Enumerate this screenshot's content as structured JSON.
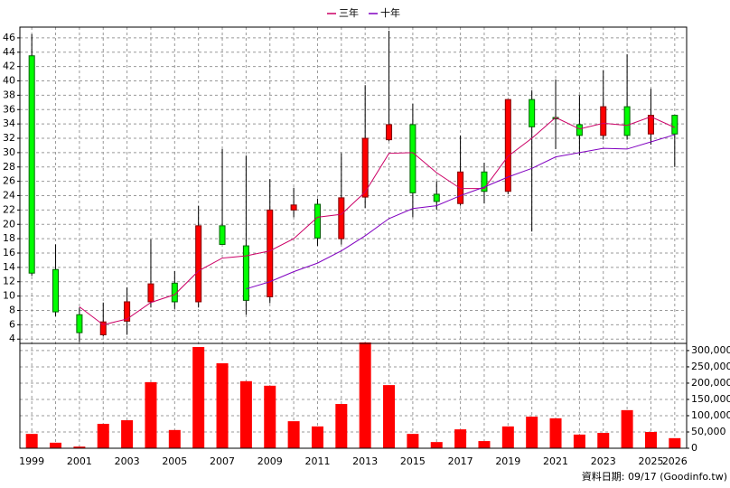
{
  "chart_data": [
    {
      "type": "candlestick",
      "open": [
        43.5,
        13.7,
        7.4,
        4.6,
        6.5,
        9.2,
        11.8,
        9.2,
        19.8,
        17.0,
        9.9,
        22.0,
        22.8,
        18.0,
        23.8,
        31.8,
        33.9,
        24.2,
        22.9,
        27.3,
        24.6,
        37.4,
        34.9,
        33.9,
        32.4,
        36.4,
        32.6,
        35.2
      ],
      "close": [
        13.2,
        7.8,
        4.9,
        6.4,
        9.2,
        11.7,
        9.2,
        19.8,
        17.2,
        9.4,
        22.0,
        22.7,
        18.1,
        23.7,
        32.0,
        33.9,
        24.4,
        23.2,
        27.3,
        24.6,
        37.4,
        33.6,
        34.7,
        32.4,
        36.4,
        32.4,
        35.2,
        32.6
      ],
      "high": [
        46.5,
        17.2,
        8.4,
        9.1,
        11.2,
        17.9,
        13.5,
        22.6,
        30.5,
        29.6,
        26.3,
        25.1,
        23.6,
        29.9,
        39.4,
        47.0,
        36.8,
        26.0,
        32.4,
        28.6,
        37.4,
        38.7,
        40.2,
        38.0,
        41.5,
        43.7,
        38.9,
        35.2
      ],
      "low": [
        12.8,
        7.2,
        3.6,
        4.4,
        4.6,
        8.4,
        8.2,
        8.4,
        17.2,
        7.4,
        9.0,
        21.0,
        17.0,
        17.2,
        22.3,
        31.6,
        21.0,
        22.0,
        22.6,
        22.9,
        24.2,
        19.0,
        30.5,
        29.6,
        31.8,
        31.8,
        31.1,
        28.0
      ],
      "up_color": "#ff0000",
      "down_color": "#00ff00",
      "series": [
        {
          "name": "三年",
          "color": "#cc0066",
          "values": [
            null,
            null,
            8.5,
            6.0,
            6.8,
            9.1,
            10.2,
            13.5,
            15.3,
            15.6,
            16.3,
            18.0,
            21.0,
            21.4,
            24.5,
            29.9,
            30.0,
            27.2,
            25.0,
            25.0,
            29.5,
            32.0,
            34.9,
            33.3,
            34.1,
            33.8,
            35.0,
            33.5
          ]
        },
        {
          "name": "十年",
          "color": "#8000c0",
          "values": [
            null,
            null,
            null,
            null,
            null,
            null,
            null,
            null,
            null,
            11.0,
            12.0,
            13.4,
            14.6,
            16.3,
            18.4,
            20.8,
            22.2,
            22.6,
            24.0,
            25.2,
            26.6,
            27.8,
            29.4,
            30.0,
            30.6,
            30.5,
            31.5,
            32.5
          ]
        }
      ],
      "ylim": [
        3.4,
        47.5
      ],
      "yticks": [
        4,
        6,
        8,
        10,
        12,
        14,
        16,
        18,
        20,
        22,
        24,
        26,
        28,
        30,
        32,
        34,
        36,
        38,
        40,
        42,
        44,
        46
      ],
      "grid": true
    },
    {
      "type": "bar",
      "categories": [
        "1999",
        null,
        "2001",
        null,
        "2003",
        null,
        "2005",
        null,
        "2007",
        null,
        "2009",
        null,
        "2011",
        null,
        "2013",
        null,
        "2015",
        null,
        "2017",
        null,
        "2019",
        null,
        "2021",
        null,
        "2023",
        null,
        "2025",
        "2026"
      ],
      "values": [
        44000,
        17000,
        5000,
        75000,
        86000,
        203000,
        56000,
        311000,
        261000,
        206000,
        192000,
        83000,
        67000,
        136000,
        325000,
        194000,
        44000,
        19000,
        58000,
        22000,
        67000,
        97000,
        92000,
        42000,
        47000,
        117000,
        50000,
        31000
      ],
      "color": "#ff0000",
      "ylim": [
        0,
        322000
      ],
      "yticks": [
        0,
        {
          "value": 50000,
          "label": "50,000"
        },
        {
          "value": 100000,
          "label": "100,000"
        },
        {
          "value": 150000,
          "label": "150,000"
        },
        {
          "value": 200000,
          "label": "200,000"
        },
        {
          "value": 250000,
          "label": "250,000"
        },
        {
          "value": 300000,
          "label": "300,000"
        }
      ],
      "grid": true,
      "note": "資料日期: 09/17  (Goodinfo.tw)"
    }
  ]
}
